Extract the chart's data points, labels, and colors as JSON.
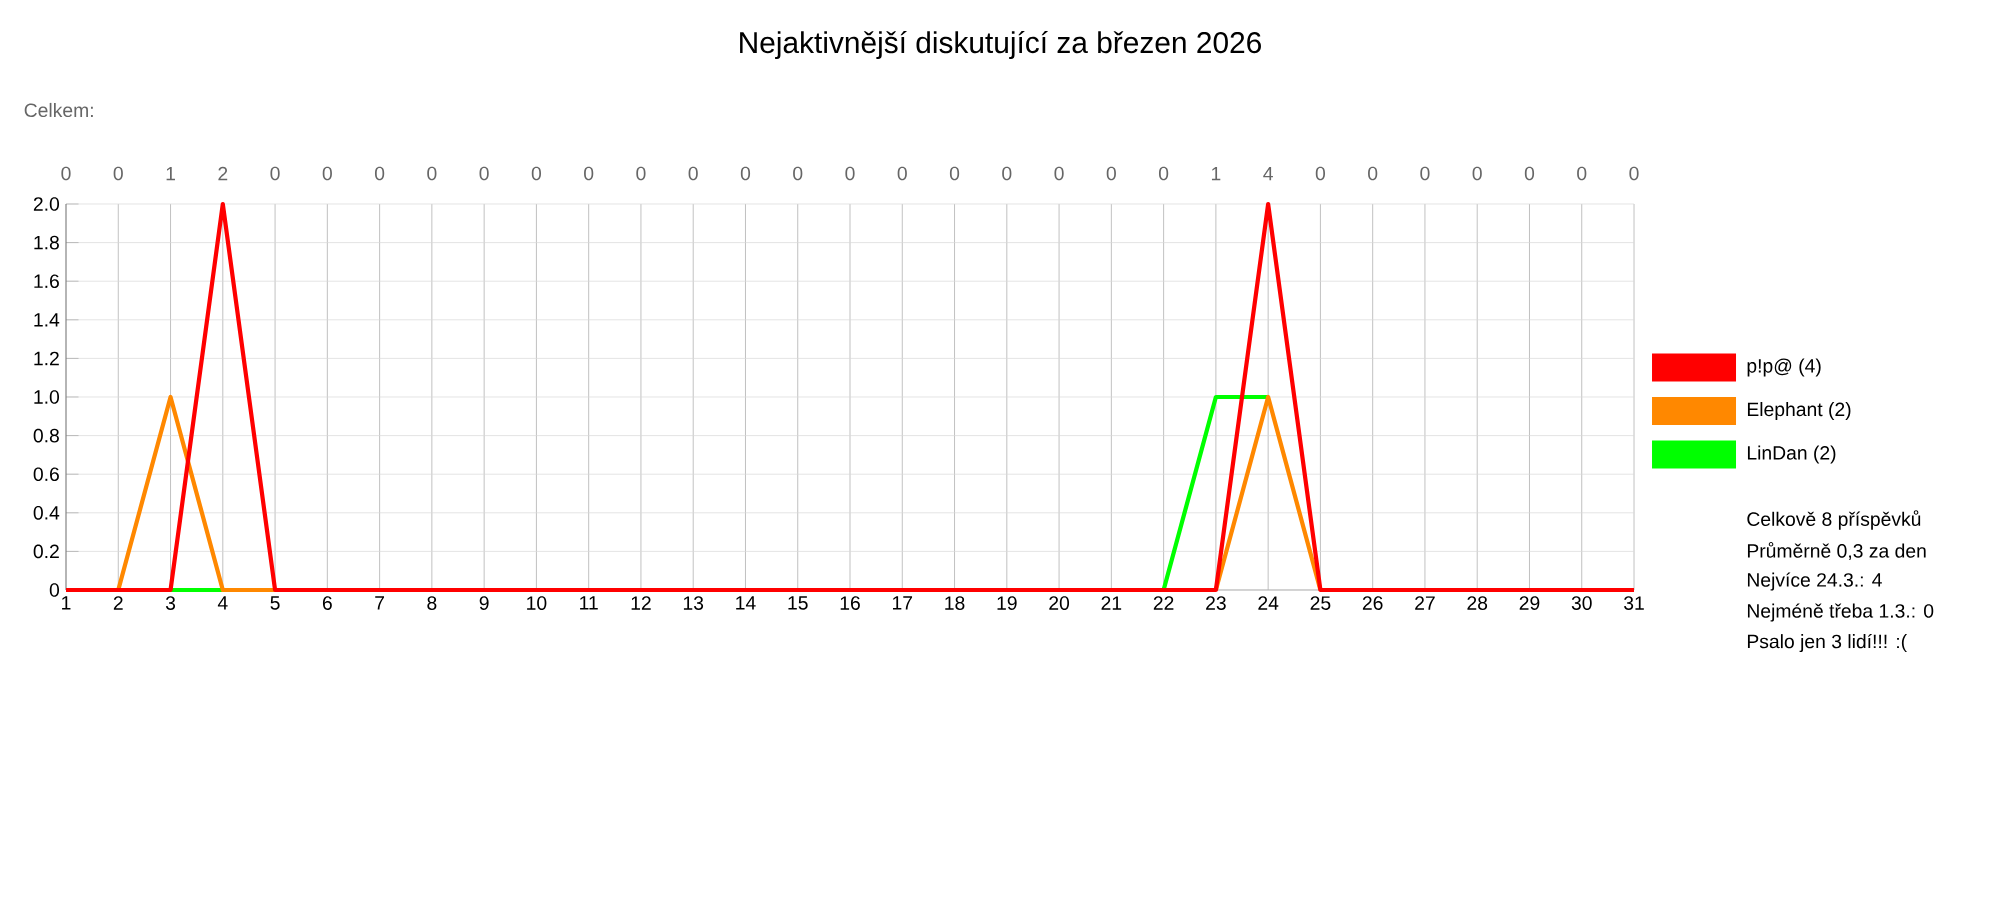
{
  "chart_data": {
    "type": "line",
    "title": "Nejaktivnější diskutující za březen 2026",
    "x": [
      1,
      2,
      3,
      4,
      5,
      6,
      7,
      8,
      9,
      10,
      11,
      12,
      13,
      14,
      15,
      16,
      17,
      18,
      19,
      20,
      21,
      22,
      23,
      24,
      25,
      26,
      27,
      28,
      29,
      30,
      31
    ],
    "series": [
      {
        "name": "p!p@ (4)",
        "color": "#ff0000",
        "values": [
          0,
          0,
          0,
          2,
          0,
          0,
          0,
          0,
          0,
          0,
          0,
          0,
          0,
          0,
          0,
          0,
          0,
          0,
          0,
          0,
          0,
          0,
          0,
          2,
          0,
          0,
          0,
          0,
          0,
          0,
          0
        ]
      },
      {
        "name": "Elephant (2)",
        "color": "#ff8800",
        "values": [
          null,
          0,
          1,
          0,
          0,
          null,
          null,
          null,
          null,
          null,
          null,
          null,
          null,
          null,
          null,
          null,
          null,
          null,
          null,
          null,
          null,
          null,
          0,
          1,
          0,
          null,
          null,
          null,
          null,
          null,
          null
        ]
      },
      {
        "name": "LinDan (2)",
        "color": "#00ff00",
        "values": [
          null,
          null,
          0,
          0,
          null,
          null,
          null,
          null,
          null,
          null,
          null,
          null,
          null,
          null,
          null,
          null,
          null,
          null,
          null,
          null,
          null,
          0,
          1,
          1,
          null,
          null,
          null,
          null,
          null,
          null,
          null
        ]
      }
    ],
    "xlim": [
      1,
      31
    ],
    "xticks": [
      1,
      2,
      3,
      4,
      5,
      6,
      7,
      8,
      9,
      10,
      11,
      12,
      13,
      14,
      15,
      16,
      17,
      18,
      19,
      20,
      21,
      22,
      23,
      24,
      25,
      26,
      27,
      28,
      29,
      30,
      31
    ],
    "totals": [
      "0",
      "0",
      "1",
      "2",
      "0",
      "0",
      "0",
      "0",
      "0",
      "0",
      "0",
      "0",
      "0",
      "0",
      "0",
      "0",
      "0",
      "0",
      "0",
      "0",
      "0",
      "0",
      "1",
      "4",
      "0",
      "0",
      "0",
      "0",
      "0",
      "0",
      "0"
    ],
    "ylim": [
      0,
      2
    ],
    "yticks": [
      0,
      {
        "value": 0.2,
        "label": "0.2"
      },
      {
        "value": 0.4,
        "label": "0.4"
      },
      {
        "value": 0.6,
        "label": "0.6"
      },
      {
        "value": 0.8,
        "label": "0.8"
      },
      {
        "value": 1,
        "label": "1.0"
      },
      {
        "value": 1.2,
        "label": "1.2"
      },
      {
        "value": 1.4,
        "label": "1.4"
      },
      {
        "value": 1.6,
        "label": "1.6"
      },
      {
        "value": 1.8,
        "label": "1.8"
      },
      {
        "value": 2,
        "label": "2.0"
      }
    ],
    "grid": true,
    "legend": "right",
    "marker": "none",
    "line_style": "solid",
    "annotations": [
      "Celkem:",
      "Celkově 8 příspěvků",
      "Průměrně 0,3 za den",
      "Nejvíce 24.3.: 4",
      "Nejméně třeba 1.3.: 0",
      "Psalo jen 3 lidí!!! :("
    ]
  }
}
